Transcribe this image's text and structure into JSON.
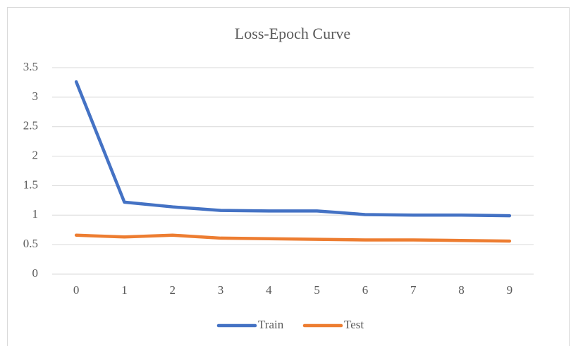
{
  "chart_data": {
    "type": "line",
    "title": "Loss-Epoch Curve",
    "categories": [
      "0",
      "1",
      "2",
      "3",
      "4",
      "5",
      "6",
      "7",
      "8",
      "9"
    ],
    "series": [
      {
        "name": "Train",
        "color": "#4472c4",
        "values": [
          3.26,
          1.22,
          1.14,
          1.08,
          1.07,
          1.07,
          1.01,
          1.0,
          1.0,
          0.99
        ]
      },
      {
        "name": "Test",
        "color": "#ed7d31",
        "values": [
          0.66,
          0.63,
          0.66,
          0.61,
          0.6,
          0.59,
          0.58,
          0.58,
          0.57,
          0.56
        ]
      }
    ],
    "ylim": [
      0,
      3.5
    ],
    "yticks": [
      0,
      0.5,
      1,
      1.5,
      2,
      2.5,
      3,
      3.5
    ],
    "grid": true,
    "legend": "bottom"
  }
}
